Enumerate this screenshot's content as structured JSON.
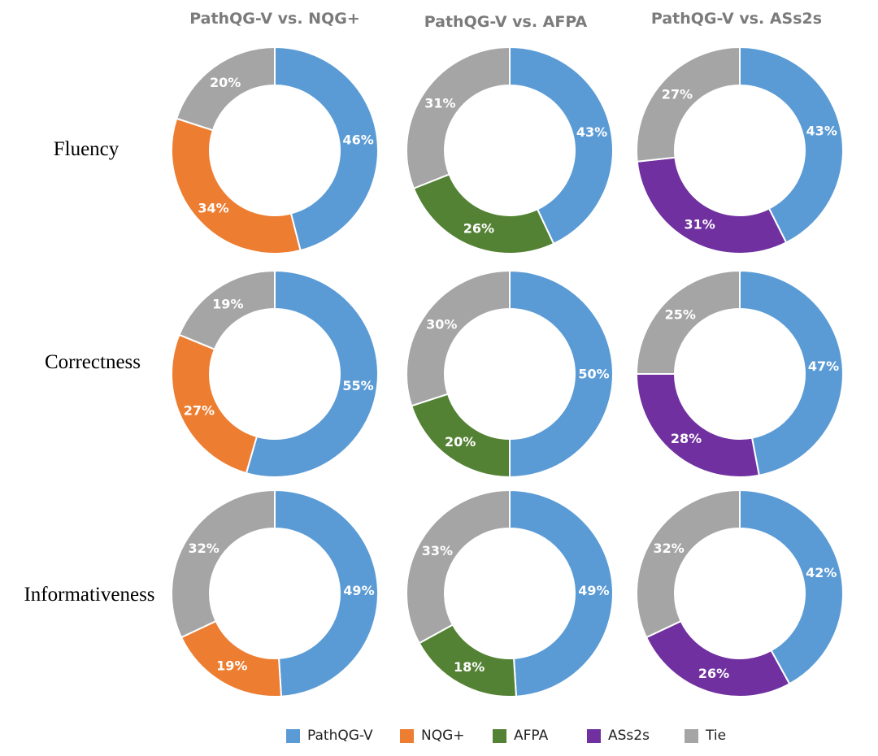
{
  "chart_data": {
    "type": "pie",
    "style": "donut-grid",
    "columns": [
      "PathQG-V  vs. NQG+",
      "PathQG-V  vs. AFPA",
      "PathQG-V  vs. ASs2s"
    ],
    "rows": [
      "Fluency",
      "Correctness",
      "Informativeness"
    ],
    "legend": {
      "placement": "bottom",
      "entries": [
        {
          "name": "PathQG-V",
          "color": "#5b9bd5"
        },
        {
          "name": "NQG+",
          "color": "#ed7d31"
        },
        {
          "name": "AFPA",
          "color": "#548235"
        },
        {
          "name": "ASs2s",
          "color": "#7030a0"
        },
        {
          "name": "Tie",
          "color": "#a5a5a5"
        }
      ]
    },
    "charts": [
      {
        "row": "Fluency",
        "column": "PathQG-V  vs. NQG+",
        "slices": [
          {
            "name": "PathQG-V",
            "value": 46,
            "label": "46%",
            "color": "#5b9bd5"
          },
          {
            "name": "NQG+",
            "value": 34,
            "label": "34%",
            "color": "#ed7d31"
          },
          {
            "name": "Tie",
            "value": 20,
            "label": "20%",
            "color": "#a5a5a5"
          }
        ]
      },
      {
        "row": "Fluency",
        "column": "PathQG-V  vs. AFPA",
        "slices": [
          {
            "name": "PathQG-V",
            "value": 43,
            "label": "43%",
            "color": "#5b9bd5"
          },
          {
            "name": "AFPA",
            "value": 26,
            "label": "26%",
            "color": "#548235"
          },
          {
            "name": "Tie",
            "value": 31,
            "label": "31%",
            "color": "#a5a5a5"
          }
        ]
      },
      {
        "row": "Fluency",
        "column": "PathQG-V  vs. ASs2s",
        "slices": [
          {
            "name": "PathQG-V",
            "value": 43,
            "label": "43%",
            "color": "#5b9bd5"
          },
          {
            "name": "ASs2s",
            "value": 31,
            "label": "31%",
            "color": "#7030a0"
          },
          {
            "name": "Tie",
            "value": 27,
            "label": "27%",
            "color": "#a5a5a5"
          }
        ]
      },
      {
        "row": "Correctness",
        "column": "PathQG-V  vs. NQG+",
        "slices": [
          {
            "name": "PathQG-V",
            "value": 55,
            "label": "55%",
            "color": "#5b9bd5"
          },
          {
            "name": "NQG+",
            "value": 27,
            "label": "27%",
            "color": "#ed7d31"
          },
          {
            "name": "Tie",
            "value": 19,
            "label": "19%",
            "color": "#a5a5a5"
          }
        ]
      },
      {
        "row": "Correctness",
        "column": "PathQG-V  vs. AFPA",
        "slices": [
          {
            "name": "PathQG-V",
            "value": 50,
            "label": "50%",
            "color": "#5b9bd5"
          },
          {
            "name": "AFPA",
            "value": 20,
            "label": "20%",
            "color": "#548235"
          },
          {
            "name": "Tie",
            "value": 30,
            "label": "30%",
            "color": "#a5a5a5"
          }
        ]
      },
      {
        "row": "Correctness",
        "column": "PathQG-V  vs. ASs2s",
        "slices": [
          {
            "name": "PathQG-V",
            "value": 47,
            "label": "47%",
            "color": "#5b9bd5"
          },
          {
            "name": "ASs2s",
            "value": 28,
            "label": "28%",
            "color": "#7030a0"
          },
          {
            "name": "Tie",
            "value": 25,
            "label": "25%",
            "color": "#a5a5a5"
          }
        ]
      },
      {
        "row": "Informativeness",
        "column": "PathQG-V  vs. NQG+",
        "slices": [
          {
            "name": "PathQG-V",
            "value": 49,
            "label": "49%",
            "color": "#5b9bd5"
          },
          {
            "name": "NQG+",
            "value": 19,
            "label": "19%",
            "color": "#ed7d31"
          },
          {
            "name": "Tie",
            "value": 32,
            "label": "32%",
            "color": "#a5a5a5"
          }
        ]
      },
      {
        "row": "Informativeness",
        "column": "PathQG-V  vs. AFPA",
        "slices": [
          {
            "name": "PathQG-V",
            "value": 49,
            "label": "49%",
            "color": "#5b9bd5"
          },
          {
            "name": "AFPA",
            "value": 18,
            "label": "18%",
            "color": "#548235"
          },
          {
            "name": "Tie",
            "value": 33,
            "label": "33%",
            "color": "#a5a5a5"
          }
        ]
      },
      {
        "row": "Informativeness",
        "column": "PathQG-V  vs. ASs2s",
        "slices": [
          {
            "name": "PathQG-V",
            "value": 42,
            "label": "42%",
            "color": "#5b9bd5"
          },
          {
            "name": "ASs2s",
            "value": 26,
            "label": "26%",
            "color": "#7030a0"
          },
          {
            "name": "Tie",
            "value": 32,
            "label": "32%",
            "color": "#a5a5a5"
          }
        ]
      }
    ]
  }
}
